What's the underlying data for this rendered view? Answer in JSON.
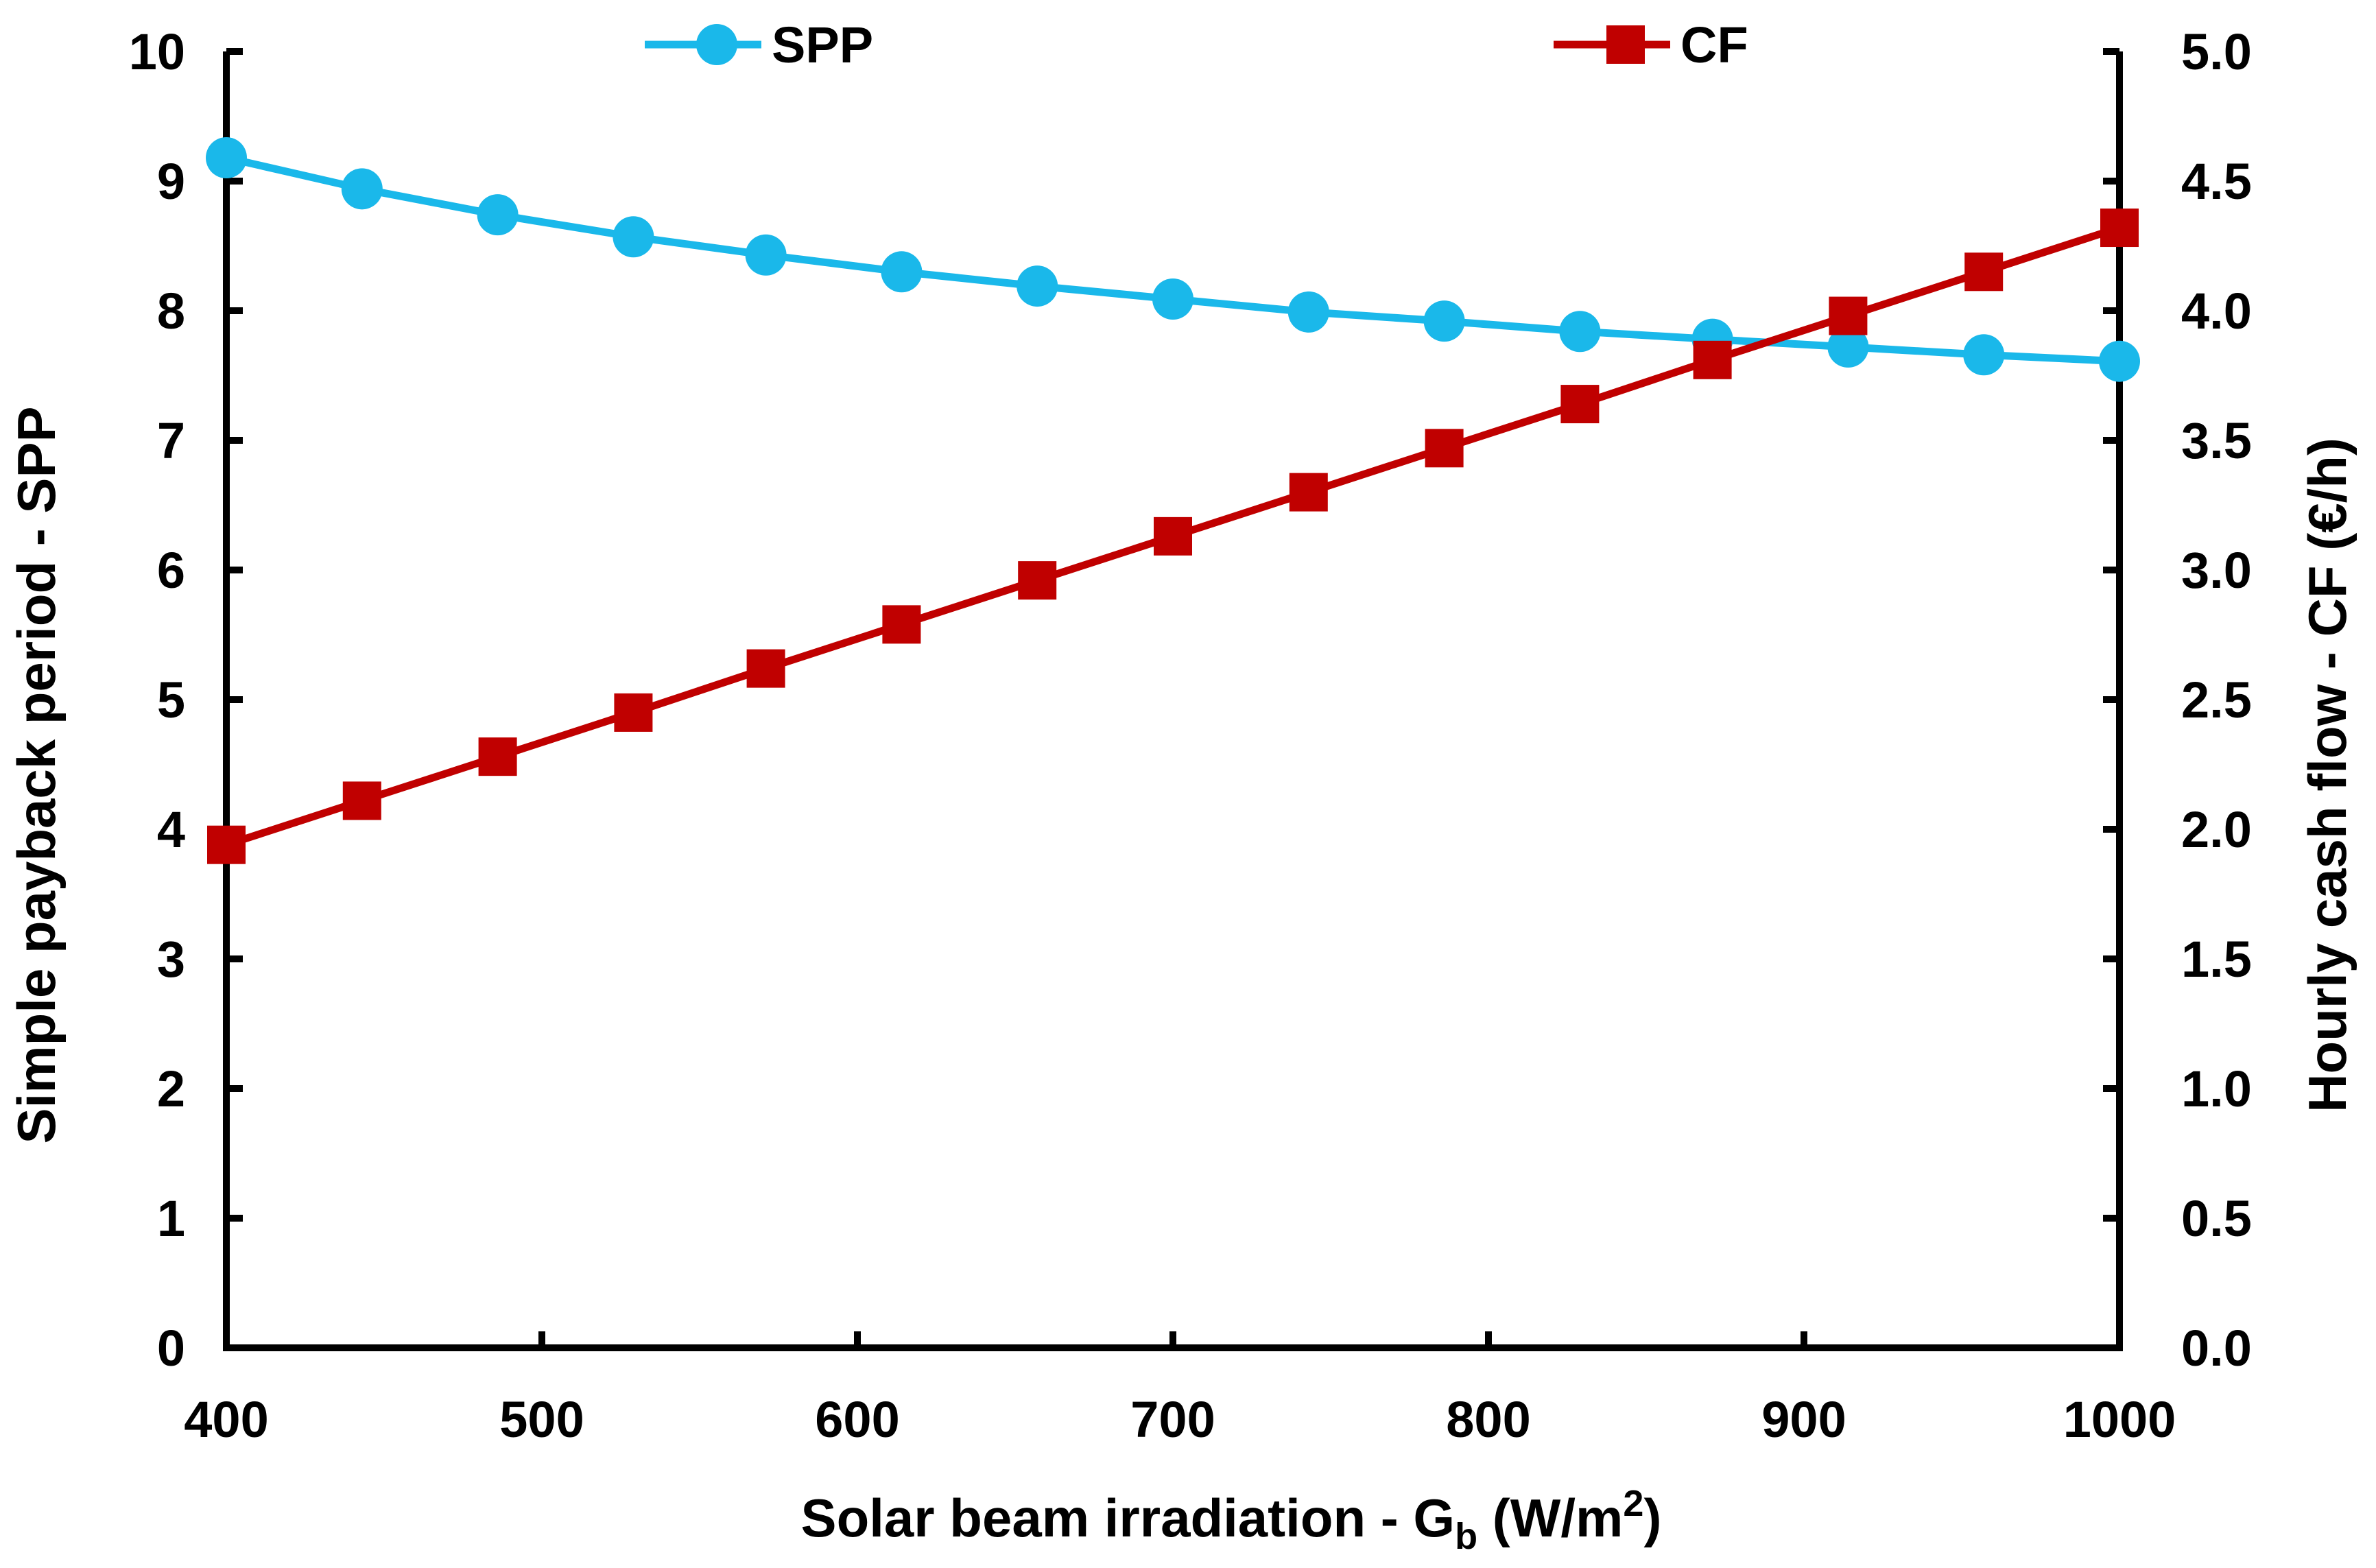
{
  "chart_data": {
    "type": "line",
    "xlabel_main": "Solar beam irradiation - G",
    "xlabel_sub": "b",
    "xlabel_unit_pre": " (W/m",
    "xlabel_unit_sup": "2",
    "xlabel_unit_post": ")",
    "ylabel_left": "Simple payback period - SPP",
    "ylabel_right": "Hourly cash flow - CF (€/h)",
    "xlim": [
      400,
      1000
    ],
    "ylim_left": [
      0,
      10
    ],
    "ylim_right": [
      0.0,
      5.0
    ],
    "x_ticks": [
      "400",
      "500",
      "600",
      "700",
      "800",
      "900",
      "1000"
    ],
    "y_left_ticks": [
      "0",
      "1",
      "2",
      "3",
      "4",
      "5",
      "6",
      "7",
      "8",
      "9",
      "10"
    ],
    "y_right_ticks": [
      "0.0",
      "0.5",
      "1.0",
      "1.5",
      "2.0",
      "2.5",
      "3.0",
      "3.5",
      "4.0",
      "4.5",
      "5.0"
    ],
    "x": [
      400,
      443,
      486,
      529,
      571,
      614,
      657,
      700,
      743,
      786,
      829,
      871,
      914,
      957,
      1000
    ],
    "series": [
      {
        "name": "SPP",
        "axis": "left",
        "color": "#1ab8ea",
        "marker": "circle",
        "values": [
          9.18,
          8.94,
          8.74,
          8.57,
          8.43,
          8.3,
          8.19,
          8.09,
          7.99,
          7.92,
          7.84,
          7.78,
          7.72,
          7.66,
          7.61
        ]
      },
      {
        "name": "CF",
        "axis": "right",
        "color": "#c00000",
        "marker": "square",
        "values": [
          1.94,
          2.11,
          2.28,
          2.45,
          2.62,
          2.79,
          2.96,
          3.13,
          3.3,
          3.47,
          3.64,
          3.81,
          3.98,
          4.15,
          4.32
        ]
      }
    ],
    "legend_position": "top",
    "grid": false
  }
}
